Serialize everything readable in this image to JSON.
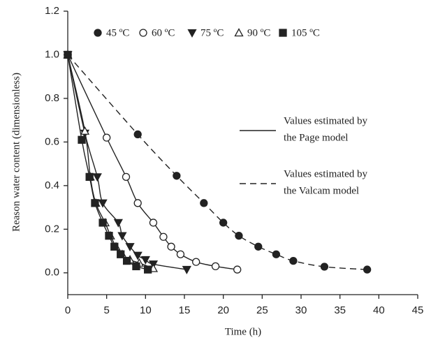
{
  "chart_data": {
    "type": "scatter",
    "x_label": "Time (h)",
    "y_label": "Reason water content (dimensionless)",
    "xlim": [
      0,
      45
    ],
    "ylim": [
      -0.1,
      1.2
    ],
    "xticks": [
      0,
      5,
      10,
      15,
      20,
      25,
      30,
      35,
      40,
      45
    ],
    "yticks": [
      {
        "value": 0,
        "label": "0.0"
      },
      0.2,
      0.4,
      0.6,
      0.8,
      {
        "value": 1,
        "label": "1.0"
      },
      0.2,
      1.2
    ],
    "series": [
      {
        "name": "45 ºC",
        "color": "#222",
        "marker": "circle",
        "filled": true,
        "fit": "dashed",
        "x": [
          0,
          9,
          14,
          17.5,
          20,
          22,
          24.5,
          26.8,
          29,
          33,
          38.5
        ],
        "values": [
          1.0,
          0.635,
          0.445,
          0.32,
          0.23,
          0.17,
          0.12,
          0.085,
          0.055,
          0.028,
          0.015
        ]
      },
      {
        "name": "60 ºC",
        "color": "#222",
        "marker": "circle",
        "filled": false,
        "fit": "solid",
        "x": [
          0,
          5,
          7.5,
          9,
          11,
          12.3,
          13.3,
          14.5,
          16.5,
          19,
          21.8
        ],
        "values": [
          1.0,
          0.62,
          0.44,
          0.32,
          0.23,
          0.165,
          0.12,
          0.085,
          0.05,
          0.03,
          0.015
        ]
      },
      {
        "name": "75 ºC",
        "color": "#222",
        "marker": "triangle-down",
        "filled": true,
        "fit": "solid",
        "x": [
          0,
          2.2,
          3.8,
          4.5,
          6.5,
          7,
          8,
          9,
          10,
          11,
          15.3
        ],
        "values": [
          1.0,
          0.64,
          0.44,
          0.32,
          0.23,
          0.17,
          0.12,
          0.08,
          0.06,
          0.04,
          0.015
        ]
      },
      {
        "name": "90 ºC",
        "color": "#222",
        "marker": "triangle-up",
        "filled": false,
        "fit": "solid",
        "x": [
          0,
          2.2,
          2.9,
          3.6,
          4.8,
          5.5,
          6.2,
          7,
          8,
          9.2,
          11
        ],
        "values": [
          1.0,
          0.65,
          0.44,
          0.32,
          0.23,
          0.17,
          0.12,
          0.085,
          0.06,
          0.045,
          0.02
        ]
      },
      {
        "name": "105 ºC",
        "color": "#222",
        "marker": "square",
        "filled": true,
        "fit": "solid",
        "x": [
          0,
          1.8,
          2.8,
          3.5,
          4.5,
          5.3,
          6,
          6.8,
          7.6,
          8.8,
          10.3
        ],
        "values": [
          1.0,
          0.61,
          0.44,
          0.32,
          0.23,
          0.17,
          0.12,
          0.085,
          0.055,
          0.03,
          0.015
        ]
      }
    ],
    "fit_legend": [
      {
        "style": "solid",
        "lines": [
          "Values estimated by",
          "the Page model"
        ]
      },
      {
        "style": "dashed",
        "lines": [
          "Values estimated by",
          "the Valcam model"
        ]
      }
    ]
  }
}
